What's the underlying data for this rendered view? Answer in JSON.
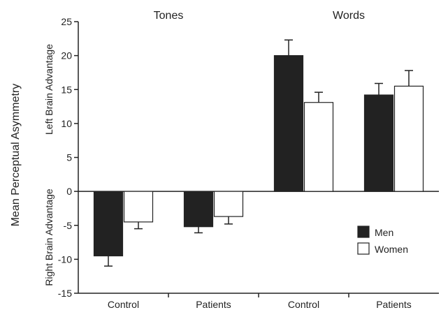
{
  "chart_data": {
    "type": "bar",
    "ylabel": "Mean Perceptual Asymmetry",
    "ylabel_upper": "Left Brain Advantage",
    "ylabel_lower": "Right Brain Advantage",
    "ylim": [
      -15,
      25
    ],
    "yticks": [
      25,
      20,
      15,
      10,
      5,
      0,
      -5,
      -10,
      -15
    ],
    "groups": [
      {
        "label": "Tones",
        "categories": [
          "Control",
          "Patients"
        ]
      },
      {
        "label": "Words",
        "categories": [
          "Control",
          "Patients"
        ]
      }
    ],
    "categories": [
      "Control",
      "Patients",
      "Control",
      "Patients"
    ],
    "series": [
      {
        "name": "Men",
        "color": "#222222",
        "values": [
          -9.5,
          -5.2,
          20.0,
          14.2
        ],
        "error": [
          1.5,
          0.9,
          2.3,
          1.7
        ]
      },
      {
        "name": "Women",
        "color": "#ffffff",
        "values": [
          -4.5,
          -3.7,
          13.1,
          15.5
        ],
        "error": [
          1.0,
          1.1,
          1.5,
          2.3
        ]
      }
    ],
    "legend_position": "bottom-right",
    "grid": false
  }
}
